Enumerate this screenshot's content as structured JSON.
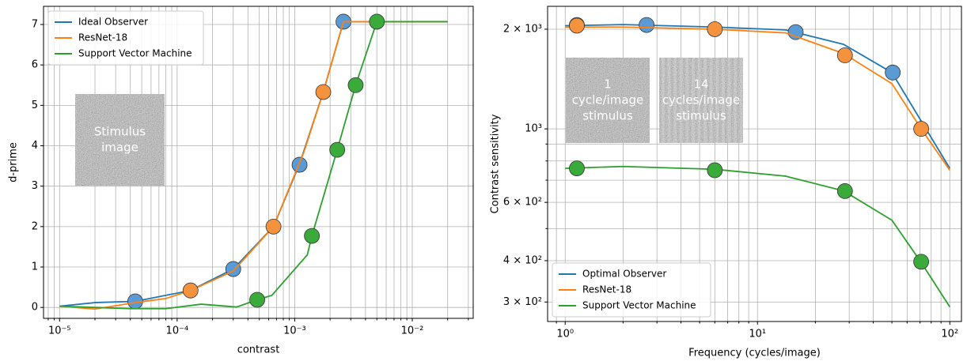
{
  "chart_data": [
    {
      "type": "line",
      "x_scale": "log",
      "y_scale": "linear",
      "grid": true,
      "legend": "upper left",
      "xlabel": "contrast",
      "ylabel": "d-prime",
      "xlim": [
        7.3e-06,
        0.033
      ],
      "ylim": [
        -0.27,
        7.45
      ],
      "xticks": [
        {
          "value": 1e-05,
          "label": "10⁻⁵"
        },
        {
          "value": 0.0001,
          "label": "10⁻⁴"
        },
        {
          "value": 0.001,
          "label": "10⁻³"
        },
        {
          "value": 0.01,
          "label": "10⁻²"
        }
      ],
      "minor_xticks": [
        8e-06,
        9e-06,
        2e-05,
        3e-05,
        4e-05,
        5e-05,
        6e-05,
        7e-05,
        8e-05,
        9e-05,
        0.0002,
        0.0003,
        0.0004,
        0.0005,
        0.0006,
        0.0007,
        0.0008,
        0.0009,
        0.002,
        0.003,
        0.004,
        0.005,
        0.006,
        0.007,
        0.008,
        0.009,
        0.02,
        0.03
      ],
      "yticks": [
        0,
        1,
        2,
        3,
        4,
        5,
        6,
        7
      ],
      "series": [
        {
          "name": "Ideal Observer",
          "color": "#1f77b4",
          "marker_color": "#5b9bd5",
          "x": [
            1e-05,
            2e-05,
            4.4e-05,
            0.00013,
            0.0003,
            0.00066,
            0.0011,
            0.00175,
            0.0026,
            0.02
          ],
          "values": [
            0.03,
            0.12,
            0.15,
            0.42,
            0.95,
            2.0,
            3.55,
            5.33,
            7.07,
            7.07
          ],
          "markers": {
            "x": [
              4.4e-05,
              0.0003,
              0.0011,
              0.0026
            ],
            "values": [
              0.15,
              0.95,
              3.53,
              7.07
            ]
          }
        },
        {
          "name": "ResNet-18",
          "color": "#ff7f0e",
          "marker_color": "#f5923e",
          "x": [
            1e-05,
            2e-05,
            4.4e-05,
            8e-05,
            0.00013,
            0.0003,
            0.00066,
            0.0012,
            0.00175,
            0.0026,
            0.02
          ],
          "values": [
            0.03,
            -0.04,
            0.12,
            0.22,
            0.42,
            0.9,
            2.0,
            3.85,
            5.33,
            7.07,
            7.07
          ],
          "markers": {
            "x": [
              0.00013,
              0.00066,
              0.00175
            ],
            "values": [
              0.42,
              2.0,
              5.33
            ]
          }
        },
        {
          "name": "Support Vector Machine",
          "color": "#2ca02c",
          "marker_color": "#3aaa3a",
          "x": [
            1e-05,
            2e-05,
            4e-05,
            8e-05,
            0.00016,
            0.00032,
            0.00048,
            0.00064,
            0.00128,
            0.0014,
            0.0023,
            0.0033,
            0.005,
            0.02
          ],
          "values": [
            0.03,
            0.0,
            -0.03,
            -0.03,
            0.08,
            0.01,
            0.19,
            0.3,
            1.3,
            1.77,
            3.9,
            5.5,
            7.07,
            7.07
          ],
          "markers": {
            "x": [
              0.00048,
              0.0014,
              0.0023,
              0.0033,
              0.005
            ],
            "values": [
              0.19,
              1.77,
              3.9,
              5.5,
              7.07
            ]
          }
        }
      ],
      "insets": [
        {
          "lines": [
            "Stimulus",
            "image"
          ]
        }
      ]
    },
    {
      "type": "line",
      "x_scale": "log",
      "y_scale": "log",
      "grid": true,
      "legend": "lower left",
      "xlabel": "Frequency (cycles/image)",
      "ylabel": "Contrast sensitivity",
      "xlim": [
        0.81,
        115
      ],
      "ylim": [
        262,
        2345
      ],
      "xticks": [
        {
          "value": 1,
          "label": "10⁰"
        },
        {
          "value": 10,
          "label": "10¹"
        },
        {
          "value": 100,
          "label": "10²"
        }
      ],
      "minor_xticks": [
        0.9,
        2,
        3,
        4,
        5,
        6,
        7,
        8,
        9,
        20,
        30,
        40,
        50,
        60,
        70,
        80,
        90
      ],
      "yticks": [
        {
          "value": 300,
          "label": "3 × 10²"
        },
        {
          "value": 400,
          "label": "4 × 10²"
        },
        {
          "value": 600,
          "label": "6 × 10²"
        },
        {
          "value": 1000,
          "label": "10³"
        },
        {
          "value": 2000,
          "label": "2 × 10³"
        }
      ],
      "minor_yticks": [
        500,
        700,
        800,
        900
      ],
      "series": [
        {
          "name": "Optimal Observer",
          "color": "#1f77b4",
          "marker_color": "#5b9bd5",
          "x": [
            1,
            2,
            6,
            14,
            28,
            50,
            100
          ],
          "values": [
            2050,
            2065,
            2030,
            1990,
            1800,
            1480,
            760
          ],
          "markers": {
            "x": [
              1.15,
              2.65,
              15.8,
              50.5
            ],
            "values": [
              2060,
              2060,
              1960,
              1480
            ]
          }
        },
        {
          "name": "ResNet-18",
          "color": "#ff7f0e",
          "marker_color": "#f5923e",
          "x": [
            1,
            2,
            6,
            14,
            28,
            50,
            71,
            100
          ],
          "values": [
            2030,
            2030,
            2000,
            1950,
            1690,
            1370,
            1000,
            750
          ],
          "markers": {
            "x": [
              1.15,
              6,
              28.5,
              71
            ],
            "values": [
              2050,
              2000,
              1668,
              1000
            ]
          }
        },
        {
          "name": "Support Vector Machine",
          "color": "#2ca02c",
          "marker_color": "#3aaa3a",
          "x": [
            1,
            2,
            6,
            14,
            28,
            50,
            71,
            100
          ],
          "values": [
            760,
            770,
            755,
            720,
            650,
            530,
            395,
            290
          ],
          "markers": {
            "x": [
              1.15,
              6,
              28.5,
              71
            ],
            "values": [
              760,
              750,
              649,
              397
            ]
          }
        }
      ],
      "insets": [
        {
          "lines": [
            "1",
            "cycle/image",
            "stimulus"
          ]
        },
        {
          "lines": [
            "14",
            "cycles/image",
            "stimulus"
          ]
        }
      ]
    }
  ]
}
